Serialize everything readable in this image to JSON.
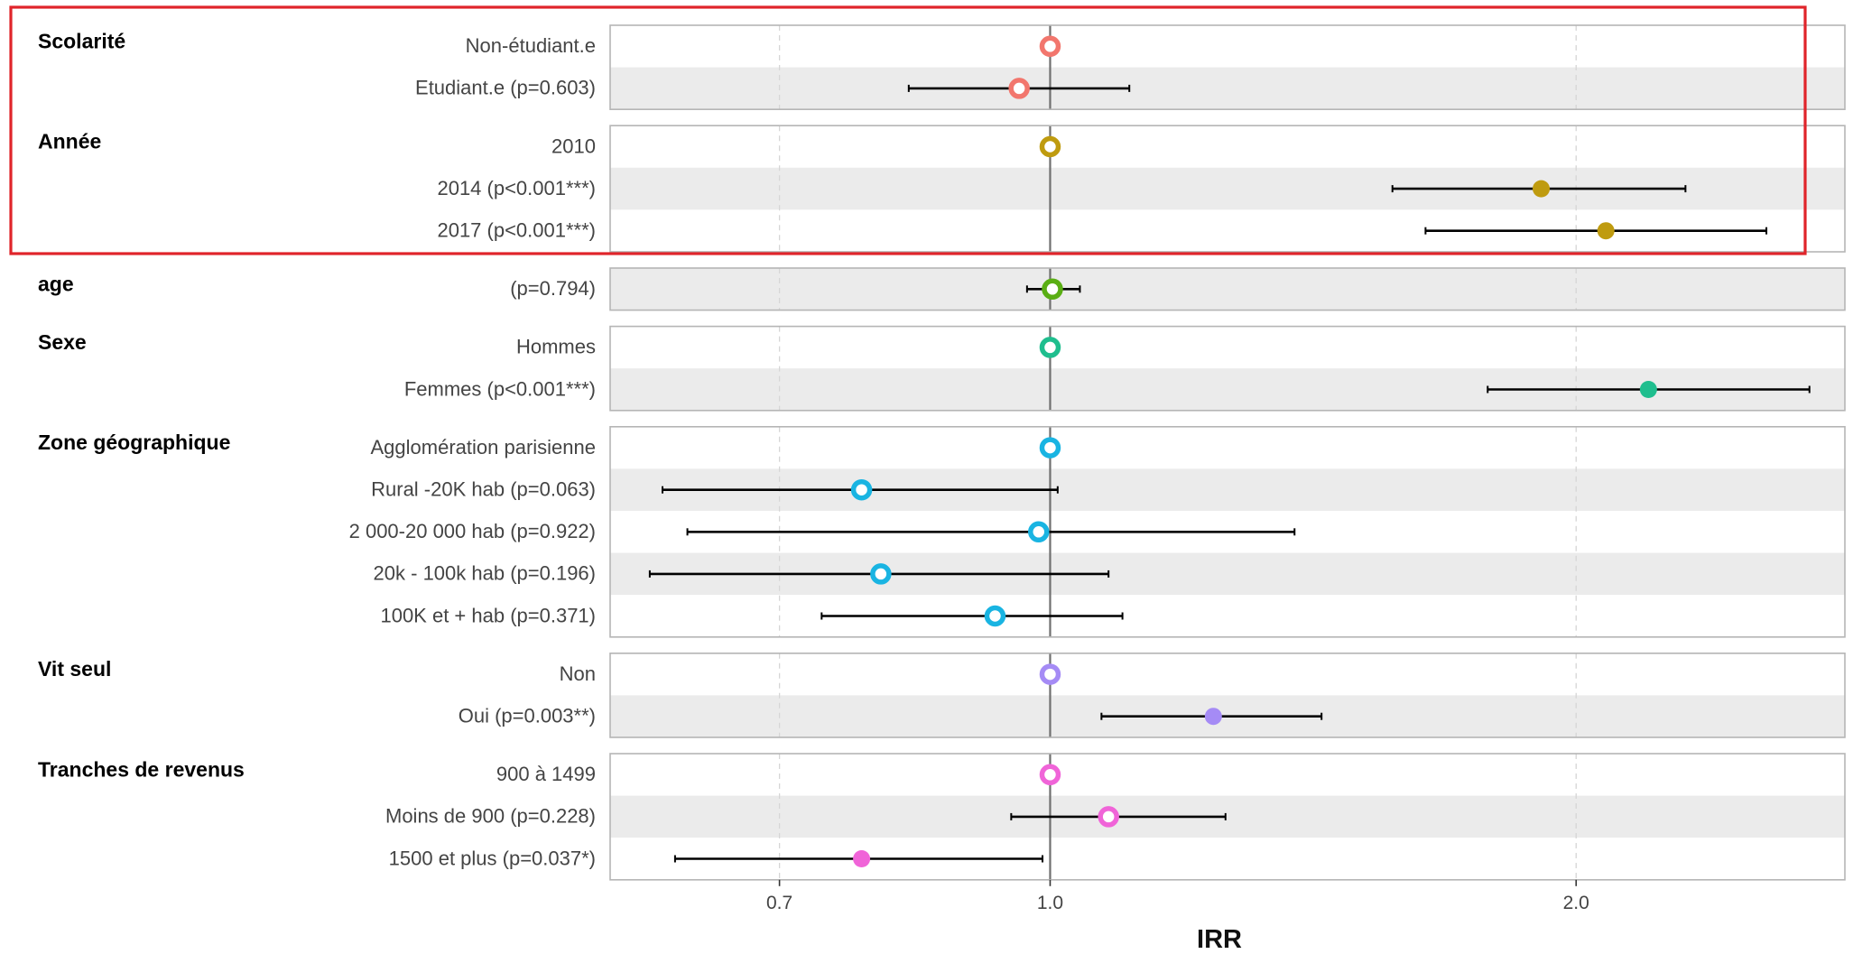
{
  "chart_data": {
    "type": "scatter",
    "xlabel": "IRR",
    "xscale": "log",
    "xlim": [
      0.56,
      2.85
    ],
    "xticks": [
      0.7,
      1.0,
      2.0
    ],
    "xtick_labels": [
      "0.7",
      "1.0",
      "2.0"
    ],
    "reference_line": 1.0,
    "highlight_box": {
      "color": "#e0242a",
      "groups": [
        "Scolarité",
        "Année"
      ]
    },
    "groups": [
      {
        "name": "Scolarité",
        "color": "#f2766d",
        "levels": [
          {
            "label": "Non-étudiant.e",
            "irr": 1.0,
            "ref": true
          },
          {
            "label": "Etudiant.e (p=0.603)",
            "irr": 0.96,
            "lo": 0.83,
            "hi": 1.11
          }
        ]
      },
      {
        "name": "Année",
        "color": "#bf9b0f",
        "levels": [
          {
            "label": "2010",
            "irr": 1.0,
            "ref": true
          },
          {
            "label": "2014 (p<0.001***)",
            "irr": 1.91,
            "lo": 1.57,
            "hi": 2.31,
            "filled": true
          },
          {
            "label": "2017 (p<0.001***)",
            "irr": 2.08,
            "lo": 1.64,
            "hi": 2.57,
            "filled": true
          }
        ]
      },
      {
        "name": "age",
        "color": "#5aae14",
        "levels": [
          {
            "label": "(p=0.794)",
            "irr": 1.003,
            "lo": 0.97,
            "hi": 1.04
          }
        ]
      },
      {
        "name": "Sexe",
        "color": "#1fbe8e",
        "levels": [
          {
            "label": "Hommes",
            "irr": 1.0,
            "ref": true
          },
          {
            "label": "Femmes (p<0.001***)",
            "irr": 2.2,
            "lo": 1.78,
            "hi": 2.72,
            "filled": true
          }
        ]
      },
      {
        "name": "Zone géographique",
        "color": "#19b4e2",
        "levels": [
          {
            "label": "Agglomération parisienne",
            "irr": 1.0,
            "ref": true
          },
          {
            "label": "Rural -20K hab (p=0.063)",
            "irr": 0.78,
            "lo": 0.6,
            "hi": 1.01
          },
          {
            "label": "2 000-20 000 hab (p=0.922)",
            "irr": 0.985,
            "lo": 0.62,
            "hi": 1.38
          },
          {
            "label": "20k - 100k hab (p=0.196)",
            "irr": 0.8,
            "lo": 0.59,
            "hi": 1.08
          },
          {
            "label": "100K et + hab (p=0.371)",
            "irr": 0.93,
            "lo": 0.74,
            "hi": 1.1
          }
        ]
      },
      {
        "name": "Vit seul",
        "color": "#a58bf5",
        "levels": [
          {
            "label": "Non",
            "irr": 1.0,
            "ref": true
          },
          {
            "label": "Oui (p=0.003**)",
            "irr": 1.24,
            "lo": 1.07,
            "hi": 1.43,
            "filled": true
          }
        ]
      },
      {
        "name": "Tranches de revenus",
        "color": "#f064d8",
        "levels": [
          {
            "label": "900 à 1499",
            "irr": 1.0,
            "ref": true
          },
          {
            "label": "Moins de 900 (p=0.228)",
            "irr": 1.08,
            "lo": 0.95,
            "hi": 1.26
          },
          {
            "label": "1500 et plus (p=0.037*)",
            "irr": 0.78,
            "lo": 0.61,
            "hi": 0.99,
            "filled": true
          }
        ]
      }
    ]
  }
}
